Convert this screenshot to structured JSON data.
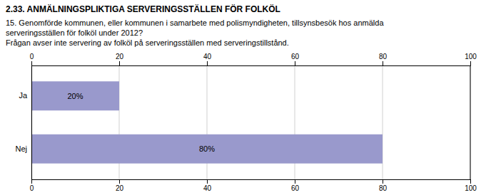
{
  "chart_data": {
    "type": "bar",
    "orientation": "horizontal",
    "title": "2.33. ANMÄLNINGSPLIKTIGA SERVERINGSSTÄLLEN FÖR FOLKÖL",
    "subtitle": [
      "15. Genomförde kommunen, eller kommunen i samarbete med polismyndigheten, tillsynsbesök hos anmälda",
      "serveringsställen för folköl under 2012?",
      "Frågan avser inte servering av folköl på serveringsställen med serveringstillstånd."
    ],
    "categories": [
      "Ja",
      "Nej"
    ],
    "values": [
      20,
      80
    ],
    "value_labels": [
      "20%",
      "80%"
    ],
    "data_labels": true,
    "color": "#9999CC",
    "xlim": [
      0,
      100
    ],
    "xticks": [
      0,
      20,
      40,
      60,
      80,
      100
    ],
    "grid": true
  }
}
